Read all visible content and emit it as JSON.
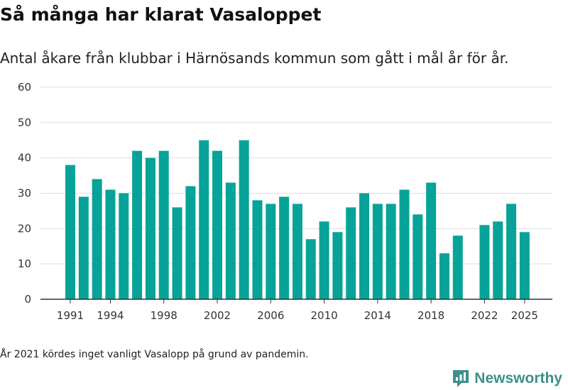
{
  "title": "Så många har klarat Vasaloppet",
  "subtitle": "Antal åkare från klubbar i Härnösands kommun som gått i mål år för år.",
  "footnote": "År 2021 kördes inget vanligt Vasalopp på grund av pandemin.",
  "brand": {
    "name": "Newsworthy",
    "icon": "newsworthy-logo-icon",
    "color": "#3d8f8c"
  },
  "colors": {
    "bar": "#07a398",
    "grid": "#dddddd",
    "axis": "#333333",
    "tick_text": "#333333"
  },
  "chart_data": {
    "type": "bar",
    "title": "",
    "xlabel": "",
    "ylabel": "",
    "ylim": [
      0,
      60
    ],
    "yticks": [
      0,
      10,
      20,
      30,
      40,
      50,
      60
    ],
    "xtick_labels": [
      "1991",
      "1994",
      "1998",
      "2002",
      "2006",
      "2010",
      "2014",
      "2018",
      "2022",
      "2025"
    ],
    "grid": true,
    "categories": [
      "1991",
      "1992",
      "1993",
      "1994",
      "1995",
      "1996",
      "1997",
      "1998",
      "1999",
      "2000",
      "2001",
      "2002",
      "2003",
      "2004",
      "2005",
      "2006",
      "2007",
      "2008",
      "2009",
      "2010",
      "2011",
      "2012",
      "2013",
      "2014",
      "2015",
      "2016",
      "2017",
      "2018",
      "2019",
      "2020",
      "2021",
      "2022",
      "2023",
      "2024",
      "2025"
    ],
    "values": [
      38,
      29,
      34,
      31,
      30,
      42,
      40,
      42,
      26,
      32,
      45,
      42,
      33,
      45,
      28,
      27,
      29,
      27,
      17,
      22,
      19,
      26,
      30,
      27,
      27,
      31,
      24,
      33,
      13,
      18,
      null,
      21,
      22,
      27,
      19
    ]
  }
}
